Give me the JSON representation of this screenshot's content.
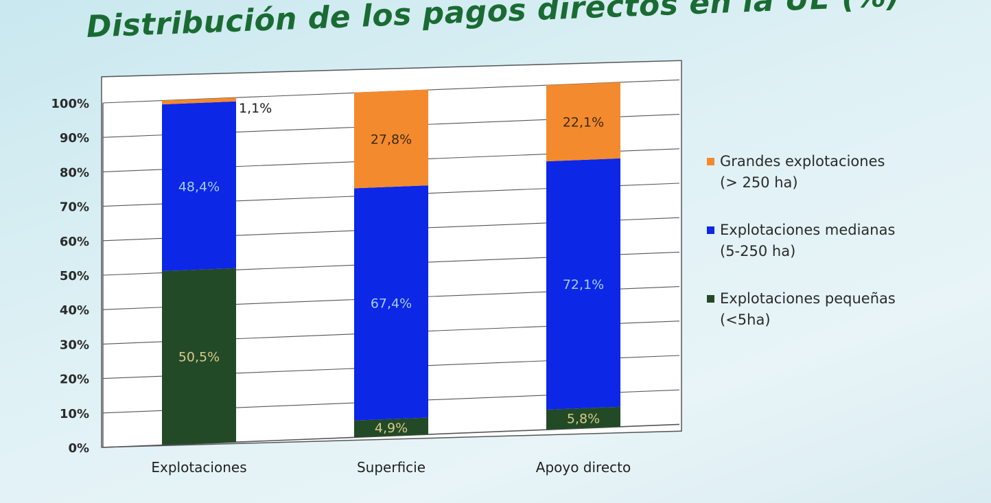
{
  "slide": {
    "title": "Distribución de los pagos directos en la UE  (%)"
  },
  "chart_data": {
    "type": "bar",
    "stacked": true,
    "categories": [
      "Explotaciones",
      "Superficie",
      "Apoyo directo"
    ],
    "series": [
      {
        "name": "Explotaciones pequeñas (<5ha)",
        "values": [
          50.5,
          4.9,
          5.8
        ],
        "labels": [
          "50,5%",
          "4,9%",
          "5,8%"
        ],
        "color": "#234a26",
        "label_color": "#d9c98a"
      },
      {
        "name": "Explotaciones medianas (5-250 ha)",
        "values": [
          48.4,
          67.4,
          72.1
        ],
        "labels": [
          "48,4%",
          "67,4%",
          "72,1%"
        ],
        "color": "#0d27e6",
        "label_color": "#9fd0f5"
      },
      {
        "name": "Grandes explotaciones (> 250 ha)",
        "values": [
          1.1,
          27.8,
          22.1
        ],
        "labels": [
          "1,1%",
          "27,8%",
          "22,1%"
        ],
        "color": "#f48a2e",
        "label_color": "#3a2a10"
      }
    ],
    "yticks": [
      "0%",
      "10%",
      "20%",
      "30%",
      "40%",
      "50%",
      "60%",
      "70%",
      "80%",
      "90%",
      "100%"
    ],
    "ylim": [
      0,
      100
    ],
    "grid": true,
    "legend": "right"
  },
  "legend": {
    "items": [
      {
        "line1": "Grandes explotaciones",
        "line2": "(> 250 ha)",
        "color": "#f48a2e"
      },
      {
        "line1": "Explotaciones medianas",
        "line2": "(5-250 ha)",
        "color": "#0d27e6"
      },
      {
        "line1": "Explotaciones pequeñas",
        "line2": "(<5ha)",
        "color": "#234a26"
      }
    ]
  }
}
